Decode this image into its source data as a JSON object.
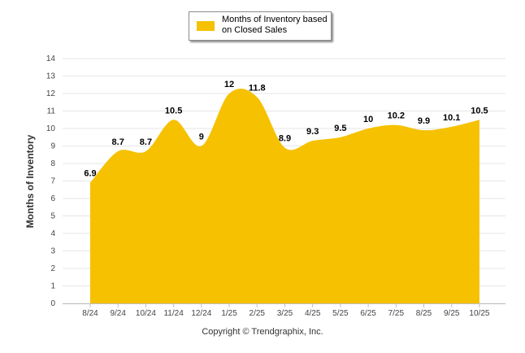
{
  "chart_data": {
    "type": "area",
    "categories": [
      "8/24",
      "9/24",
      "10/24",
      "11/24",
      "12/24",
      "1/25",
      "2/25",
      "3/25",
      "4/25",
      "5/25",
      "6/25",
      "7/25",
      "8/25",
      "9/25",
      "10/25"
    ],
    "series": [
      {
        "name": "Months of Inventory based on Closed Sales",
        "values": [
          6.9,
          8.7,
          8.7,
          10.5,
          9,
          12,
          11.8,
          8.9,
          9.3,
          9.5,
          10,
          10.2,
          9.9,
          10.1,
          10.5
        ],
        "labels": [
          "6.9",
          "8.7",
          "8.7",
          "10.5",
          "9",
          "12",
          "11.8",
          "8.9",
          "9.3",
          "9.5",
          "10",
          "10.2",
          "9.9",
          "10.1",
          "10.5"
        ]
      }
    ],
    "title": "",
    "xlabel": "",
    "ylabel": "Months of Inventory",
    "ylim": [
      0,
      14
    ],
    "yticks": [
      "0",
      "1",
      "2",
      "3",
      "4",
      "5",
      "6",
      "7",
      "8",
      "9",
      "10",
      "11",
      "12",
      "13",
      "14"
    ],
    "grid": true,
    "legend": "top-center",
    "colors": {
      "fill": "#f5c100",
      "grid": "#e6e6e6",
      "axis": "#c0c0c0"
    }
  },
  "legend": {
    "line1": "Months of Inventory based",
    "line2": "on Closed Sales"
  },
  "footer": {
    "copyright": "Copyright © Trendgraphix, Inc."
  }
}
